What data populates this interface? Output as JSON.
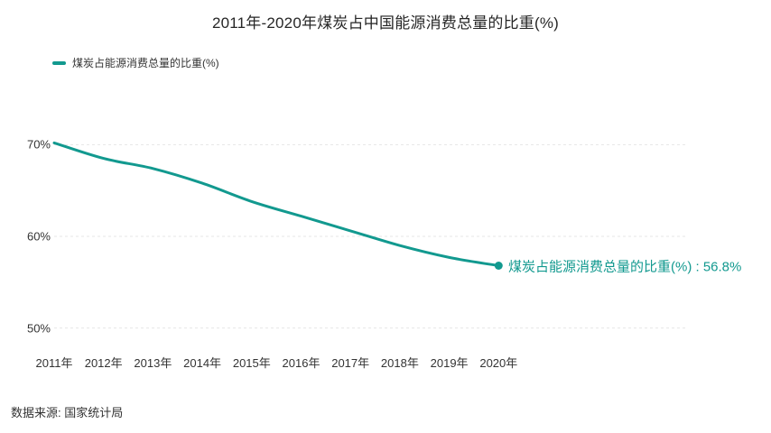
{
  "title": "2011年-2020年煤炭占中国能源消费总量的比重(%)",
  "legend": {
    "label": "煤炭占能源消费总量的比重(%)"
  },
  "end_label": "煤炭占能源消费总量的比重(%) : 56.8%",
  "source": "数据来源: 国家统计局",
  "colors": {
    "line": "#12998f",
    "grid": "#e6e6e6",
    "title": "#262626",
    "axis_text": "#333333"
  },
  "chart_data": {
    "type": "line",
    "title": "2011年-2020年煤炭占中国能源消费总量的比重(%)",
    "categories": [
      "2011年",
      "2012年",
      "2013年",
      "2014年",
      "2015年",
      "2016年",
      "2017年",
      "2018年",
      "2019年",
      "2020年"
    ],
    "series": [
      {
        "name": "煤炭占能源消费总量的比重(%)",
        "values": [
          70.2,
          68.5,
          67.4,
          65.8,
          63.8,
          62.2,
          60.6,
          59.0,
          57.7,
          56.8
        ]
      }
    ],
    "xlabel": "",
    "ylabel": "",
    "yticks": [
      {
        "value": 70,
        "label": "70%"
      },
      {
        "value": 60,
        "label": "60%"
      },
      {
        "value": 50,
        "label": "50%"
      }
    ],
    "ylim": [
      48,
      72
    ],
    "grid": "dotted-horizontal",
    "legend_position": "top-left",
    "last_point_value_label": "56.8%"
  }
}
